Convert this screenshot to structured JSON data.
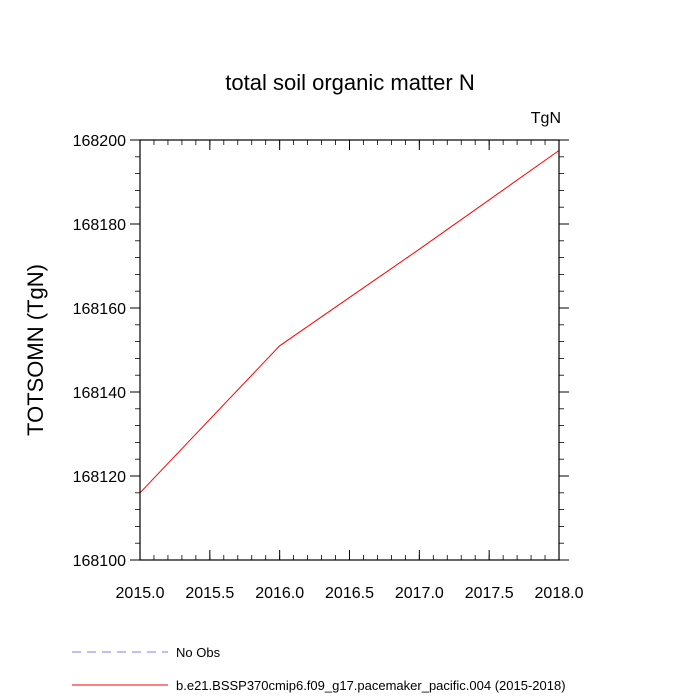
{
  "chart_data": {
    "type": "line",
    "title": "total soil organic matter N",
    "units_label": "TgN",
    "xlabel": "",
    "ylabel": "TOTSOMN  (TgN)",
    "xlim": [
      2015.0,
      2018.0
    ],
    "ylim": [
      168100,
      168200
    ],
    "x_ticks": [
      2015.0,
      2015.5,
      2016.0,
      2016.5,
      2017.0,
      2017.5,
      2018.0
    ],
    "x_tick_labels": [
      "2015.0",
      "2015.5",
      "2016.0",
      "2016.5",
      "2017.0",
      "2017.5",
      "2018.0"
    ],
    "y_ticks": [
      168100,
      168120,
      168140,
      168160,
      168180,
      168200
    ],
    "y_tick_labels": [
      "168100",
      "168120",
      "168140",
      "168160",
      "168180",
      "168200"
    ],
    "grid": false,
    "legend_position": "bottom-left, below plot",
    "series": [
      {
        "name": "No Obs",
        "color": "#7f7fff",
        "dashed": true,
        "x": [],
        "y": []
      },
      {
        "name": "b.e21.BSSP370cmip6.f09_g17.pacemaker_pacific.004 (2015-2018)",
        "color": "#ff0000",
        "dashed": false,
        "x": [
          2015.0,
          2016.0,
          2017.0,
          2018.0
        ],
        "y": [
          168116,
          168151,
          168174,
          168197.5
        ]
      }
    ]
  }
}
